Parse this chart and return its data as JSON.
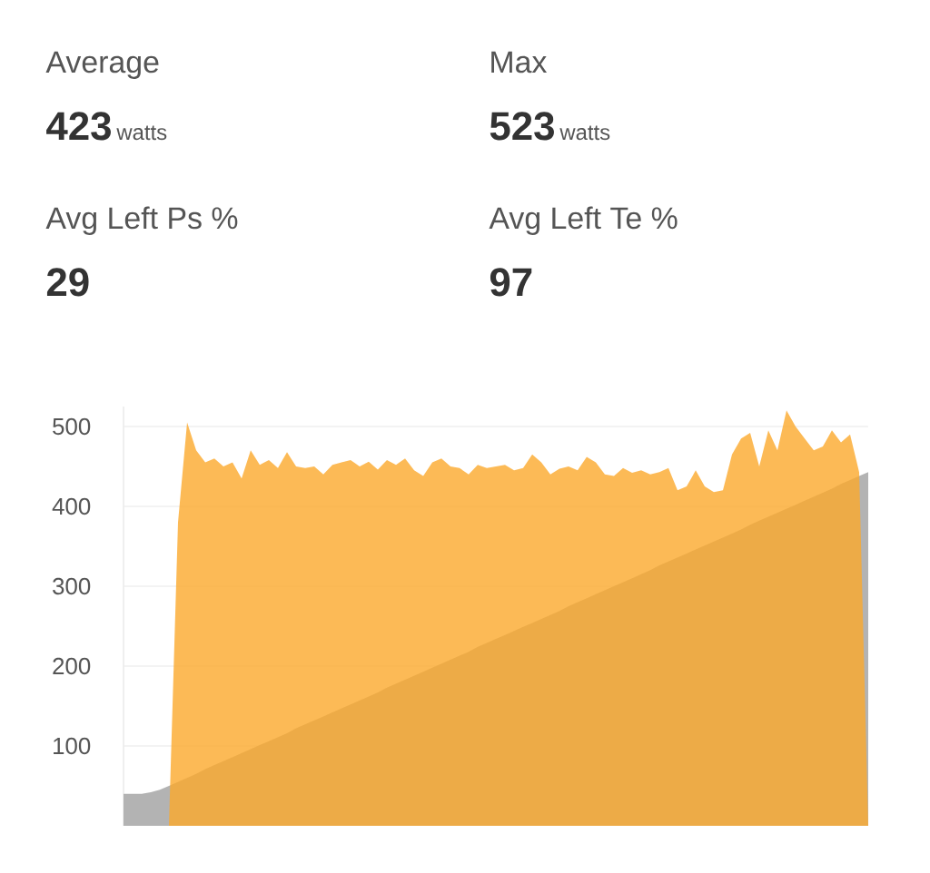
{
  "chart_data": [
    {
      "type": "other",
      "annotations": [
        "Average",
        "423",
        "watts",
        "Max",
        "523",
        "watts",
        "Avg Left Ps %",
        "29",
        "Avg Left Te %",
        "97"
      ]
    },
    {
      "type": "area",
      "categories": [
        null,
        null,
        null,
        null,
        null,
        null,
        null,
        null,
        null,
        null,
        null,
        null,
        null,
        null,
        null,
        null,
        null,
        null,
        null,
        null,
        null,
        null,
        null,
        null,
        null,
        null,
        null,
        null,
        null,
        null,
        null,
        null,
        null,
        null,
        null,
        null,
        null,
        null,
        null,
        null,
        null,
        null,
        null,
        null,
        null,
        null,
        null,
        null,
        null,
        null,
        null,
        null,
        null,
        null,
        null,
        null,
        null,
        null,
        null,
        null,
        null,
        null,
        null,
        null,
        null,
        null,
        null,
        null,
        null,
        null,
        null,
        null,
        null,
        null,
        null,
        null,
        null,
        null,
        null,
        null,
        null,
        null,
        null
      ],
      "ylim": [
        0,
        525
      ],
      "yticks": [
        100,
        200,
        300,
        400,
        500
      ],
      "grid": "y",
      "series": [
        {
          "color": "#b3b3b3",
          "values": [
            40,
            40,
            40,
            42,
            45,
            50,
            55,
            60,
            65,
            71,
            76,
            81,
            86,
            91,
            96,
            101,
            106,
            111,
            116,
            122,
            127,
            132,
            137,
            142,
            147,
            152,
            157,
            162,
            167,
            173,
            178,
            183,
            188,
            193,
            198,
            203,
            208,
            213,
            218,
            224,
            229,
            234,
            239,
            244,
            249,
            254,
            259,
            264,
            269,
            275,
            280,
            285,
            290,
            295,
            300,
            305,
            310,
            315,
            320,
            326,
            331,
            336,
            341,
            346,
            351,
            356,
            361,
            366,
            371,
            377,
            382,
            387,
            392,
            397,
            402,
            407,
            412,
            417,
            422,
            428,
            433,
            438,
            443
          ]
        },
        {
          "color": "#fba92c",
          "values": [
            0,
            0,
            0,
            0,
            0,
            0,
            380,
            505,
            470,
            455,
            460,
            450,
            455,
            435,
            470,
            452,
            458,
            448,
            468,
            450,
            448,
            450,
            440,
            452,
            455,
            458,
            450,
            456,
            446,
            458,
            452,
            460,
            445,
            438,
            455,
            460,
            450,
            448,
            440,
            452,
            448,
            450,
            452,
            445,
            448,
            465,
            455,
            440,
            447,
            450,
            445,
            462,
            455,
            440,
            438,
            448,
            442,
            445,
            440,
            443,
            448,
            420,
            425,
            445,
            425,
            418,
            420,
            465,
            485,
            492,
            450,
            495,
            470,
            520,
            500,
            485,
            470,
            475,
            495,
            480,
            490,
            443,
            0
          ]
        }
      ]
    }
  ]
}
